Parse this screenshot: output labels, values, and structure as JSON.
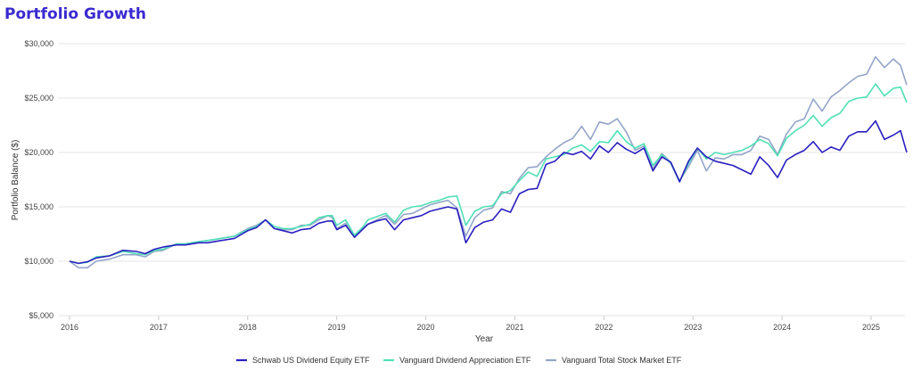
{
  "chart_data": {
    "type": "line",
    "title": "Portfolio Growth",
    "xlabel": "Year",
    "ylabel": "Portfolio Balance ($)",
    "ylim": [
      5000,
      30000
    ],
    "xlim": [
      2016,
      2025.42
    ],
    "grid": true,
    "legend": "bottom-center",
    "y_ticks": [
      {
        "value": 5000,
        "label": "$5,000"
      },
      {
        "value": 10000,
        "label": "$10,000"
      },
      {
        "value": 15000,
        "label": "$15,000"
      },
      {
        "value": 20000,
        "label": "$20,000"
      },
      {
        "value": 25000,
        "label": "$25,000"
      },
      {
        "value": 30000,
        "label": "$30,000"
      }
    ],
    "x_ticks": [
      {
        "value": 2016,
        "label": "2016"
      },
      {
        "value": 2017,
        "label": "2017"
      },
      {
        "value": 2018,
        "label": "2018"
      },
      {
        "value": 2019,
        "label": "2019"
      },
      {
        "value": 2020,
        "label": "2020"
      },
      {
        "value": 2021,
        "label": "2021"
      },
      {
        "value": 2022,
        "label": "2022"
      },
      {
        "value": 2023,
        "label": "2023"
      },
      {
        "value": 2024,
        "label": "2024"
      },
      {
        "value": 2025,
        "label": "2025"
      }
    ],
    "series": [
      {
        "name": "Schwab US Dividend Equity ETF",
        "color": "#2a1fc0",
        "x": [
          2016.0,
          2016.1,
          2016.2,
          2016.3,
          2016.45,
          2016.6,
          2016.75,
          2016.85,
          2016.95,
          2017.05,
          2017.2,
          2017.3,
          2017.45,
          2017.55,
          2017.7,
          2017.85,
          2018.0,
          2018.1,
          2018.2,
          2018.3,
          2018.4,
          2018.5,
          2018.6,
          2018.7,
          2018.8,
          2018.9,
          2018.95,
          2019.0,
          2019.1,
          2019.2,
          2019.3,
          2019.35,
          2019.45,
          2019.55,
          2019.65,
          2019.75,
          2019.85,
          2019.95,
          2020.05,
          2020.15,
          2020.25,
          2020.35,
          2020.45,
          2020.55,
          2020.65,
          2020.75,
          2020.85,
          2020.95,
          2021.05,
          2021.15,
          2021.25,
          2021.35,
          2021.45,
          2021.55,
          2021.65,
          2021.75,
          2021.85,
          2021.95,
          2022.05,
          2022.15,
          2022.25,
          2022.35,
          2022.45,
          2022.55,
          2022.65,
          2022.75,
          2022.85,
          2022.95,
          2023.05,
          2023.15,
          2023.25,
          2023.35,
          2023.45,
          2023.55,
          2023.65,
          2023.75,
          2023.85,
          2023.95,
          2024.05,
          2024.15,
          2024.25,
          2024.35,
          2024.45,
          2024.55,
          2024.65,
          2024.75,
          2024.85,
          2024.95,
          2025.05,
          2025.15,
          2025.25,
          2025.33,
          2025.4
        ],
        "y": [
          10000,
          9800,
          9950,
          10300,
          10500,
          11000,
          10900,
          10700,
          11100,
          11300,
          11500,
          11500,
          11700,
          11700,
          11900,
          12100,
          12800,
          13100,
          13800,
          13000,
          12800,
          12600,
          12900,
          13000,
          13500,
          13700,
          13700,
          12900,
          13300,
          12200,
          13000,
          13400,
          13700,
          13900,
          12900,
          13800,
          14000,
          14200,
          14600,
          14800,
          15000,
          14800,
          11700,
          13100,
          13600,
          13800,
          14800,
          14500,
          16200,
          16600,
          16700,
          18900,
          19200,
          20000,
          19800,
          20100,
          19400,
          20600,
          20000,
          20900,
          20300,
          19900,
          20400,
          18300,
          19600,
          19100,
          17300,
          19200,
          20400,
          19600,
          19200,
          19000,
          18800,
          18400,
          18000,
          19600,
          18800,
          17700,
          19300,
          19800,
          20200,
          21000,
          20000,
          20500,
          20200,
          21500,
          21900,
          21900,
          22900,
          21200,
          21600,
          22000,
          20000
        ]
      },
      {
        "name": "Vanguard Dividend Appreciation ETF",
        "color": "#4fe0b6",
        "x": [
          2016.0,
          2016.1,
          2016.2,
          2016.3,
          2016.45,
          2016.6,
          2016.75,
          2016.85,
          2016.95,
          2017.05,
          2017.2,
          2017.3,
          2017.45,
          2017.55,
          2017.7,
          2017.85,
          2018.0,
          2018.1,
          2018.2,
          2018.3,
          2018.4,
          2018.5,
          2018.6,
          2018.7,
          2018.8,
          2018.9,
          2018.95,
          2019.0,
          2019.1,
          2019.2,
          2019.3,
          2019.35,
          2019.45,
          2019.55,
          2019.65,
          2019.75,
          2019.85,
          2019.95,
          2020.05,
          2020.15,
          2020.25,
          2020.35,
          2020.45,
          2020.55,
          2020.65,
          2020.75,
          2020.85,
          2020.95,
          2021.05,
          2021.15,
          2021.25,
          2021.35,
          2021.45,
          2021.55,
          2021.65,
          2021.75,
          2021.85,
          2021.95,
          2022.05,
          2022.15,
          2022.25,
          2022.35,
          2022.45,
          2022.55,
          2022.65,
          2022.75,
          2022.85,
          2022.95,
          2023.05,
          2023.15,
          2023.25,
          2023.35,
          2023.45,
          2023.55,
          2023.65,
          2023.75,
          2023.85,
          2023.95,
          2024.05,
          2024.15,
          2024.25,
          2024.35,
          2024.45,
          2024.55,
          2024.65,
          2024.75,
          2024.85,
          2024.95,
          2025.05,
          2025.15,
          2025.25,
          2025.33,
          2025.4
        ],
        "y": [
          10000,
          9800,
          9900,
          10400,
          10500,
          10900,
          10700,
          10600,
          11000,
          11100,
          11600,
          11600,
          11800,
          11900,
          12100,
          12300,
          12900,
          13200,
          13800,
          13200,
          13000,
          13000,
          13200,
          13400,
          14000,
          14200,
          14200,
          13300,
          13800,
          12400,
          13200,
          13800,
          14100,
          14400,
          13600,
          14700,
          15000,
          15100,
          15400,
          15600,
          15900,
          16000,
          13300,
          14600,
          15000,
          15100,
          16200,
          16500,
          17400,
          18200,
          17800,
          19400,
          19600,
          19800,
          20400,
          20700,
          20100,
          21000,
          20900,
          22000,
          21000,
          20400,
          20800,
          18800,
          19800,
          19000,
          17300,
          19000,
          20400,
          19400,
          20000,
          19800,
          20000,
          20200,
          20600,
          21200,
          20800,
          19700,
          21300,
          22000,
          22500,
          23400,
          22400,
          23200,
          23600,
          24700,
          25000,
          25100,
          26300,
          25200,
          25900,
          26000,
          24600
        ]
      },
      {
        "name": "Vanguard Total Stock Market ETF",
        "color": "#93a5c9",
        "x": [
          2016.0,
          2016.1,
          2016.2,
          2016.3,
          2016.45,
          2016.6,
          2016.75,
          2016.85,
          2016.95,
          2017.05,
          2017.2,
          2017.3,
          2017.45,
          2017.55,
          2017.7,
          2017.85,
          2018.0,
          2018.1,
          2018.2,
          2018.3,
          2018.4,
          2018.5,
          2018.6,
          2018.7,
          2018.8,
          2018.9,
          2018.95,
          2019.0,
          2019.1,
          2019.2,
          2019.3,
          2019.35,
          2019.45,
          2019.55,
          2019.65,
          2019.75,
          2019.85,
          2019.95,
          2020.05,
          2020.15,
          2020.25,
          2020.35,
          2020.45,
          2020.55,
          2020.65,
          2020.75,
          2020.85,
          2020.95,
          2021.05,
          2021.15,
          2021.25,
          2021.35,
          2021.45,
          2021.55,
          2021.65,
          2021.75,
          2021.85,
          2021.95,
          2022.05,
          2022.15,
          2022.25,
          2022.35,
          2022.45,
          2022.55,
          2022.65,
          2022.75,
          2022.85,
          2022.95,
          2023.05,
          2023.15,
          2023.25,
          2023.35,
          2023.45,
          2023.55,
          2023.65,
          2023.75,
          2023.85,
          2023.95,
          2024.05,
          2024.15,
          2024.25,
          2024.35,
          2024.45,
          2024.55,
          2024.65,
          2024.75,
          2024.85,
          2024.95,
          2025.05,
          2025.15,
          2025.25,
          2025.33,
          2025.4
        ],
        "y": [
          10000,
          9400,
          9400,
          10000,
          10200,
          10600,
          10600,
          10400,
          10900,
          11000,
          11600,
          11600,
          11800,
          11900,
          12100,
          12300,
          13000,
          13300,
          13800,
          13000,
          12900,
          12900,
          13300,
          13300,
          13800,
          14200,
          14000,
          13000,
          13500,
          12300,
          13000,
          13400,
          13800,
          14200,
          13400,
          14300,
          14400,
          14800,
          15200,
          15400,
          15600,
          14900,
          12300,
          14000,
          14700,
          14900,
          16400,
          16200,
          17600,
          18600,
          18700,
          19600,
          20300,
          20900,
          21300,
          22400,
          21200,
          22800,
          22600,
          23100,
          21900,
          20200,
          20600,
          18500,
          19900,
          19100,
          17400,
          18700,
          20200,
          18300,
          19500,
          19400,
          19800,
          19800,
          20200,
          21500,
          21200,
          19800,
          21700,
          22800,
          23100,
          24900,
          23800,
          25100,
          25700,
          26400,
          27000,
          27200,
          28800,
          27800,
          28600,
          28000,
          26200
        ]
      }
    ]
  }
}
